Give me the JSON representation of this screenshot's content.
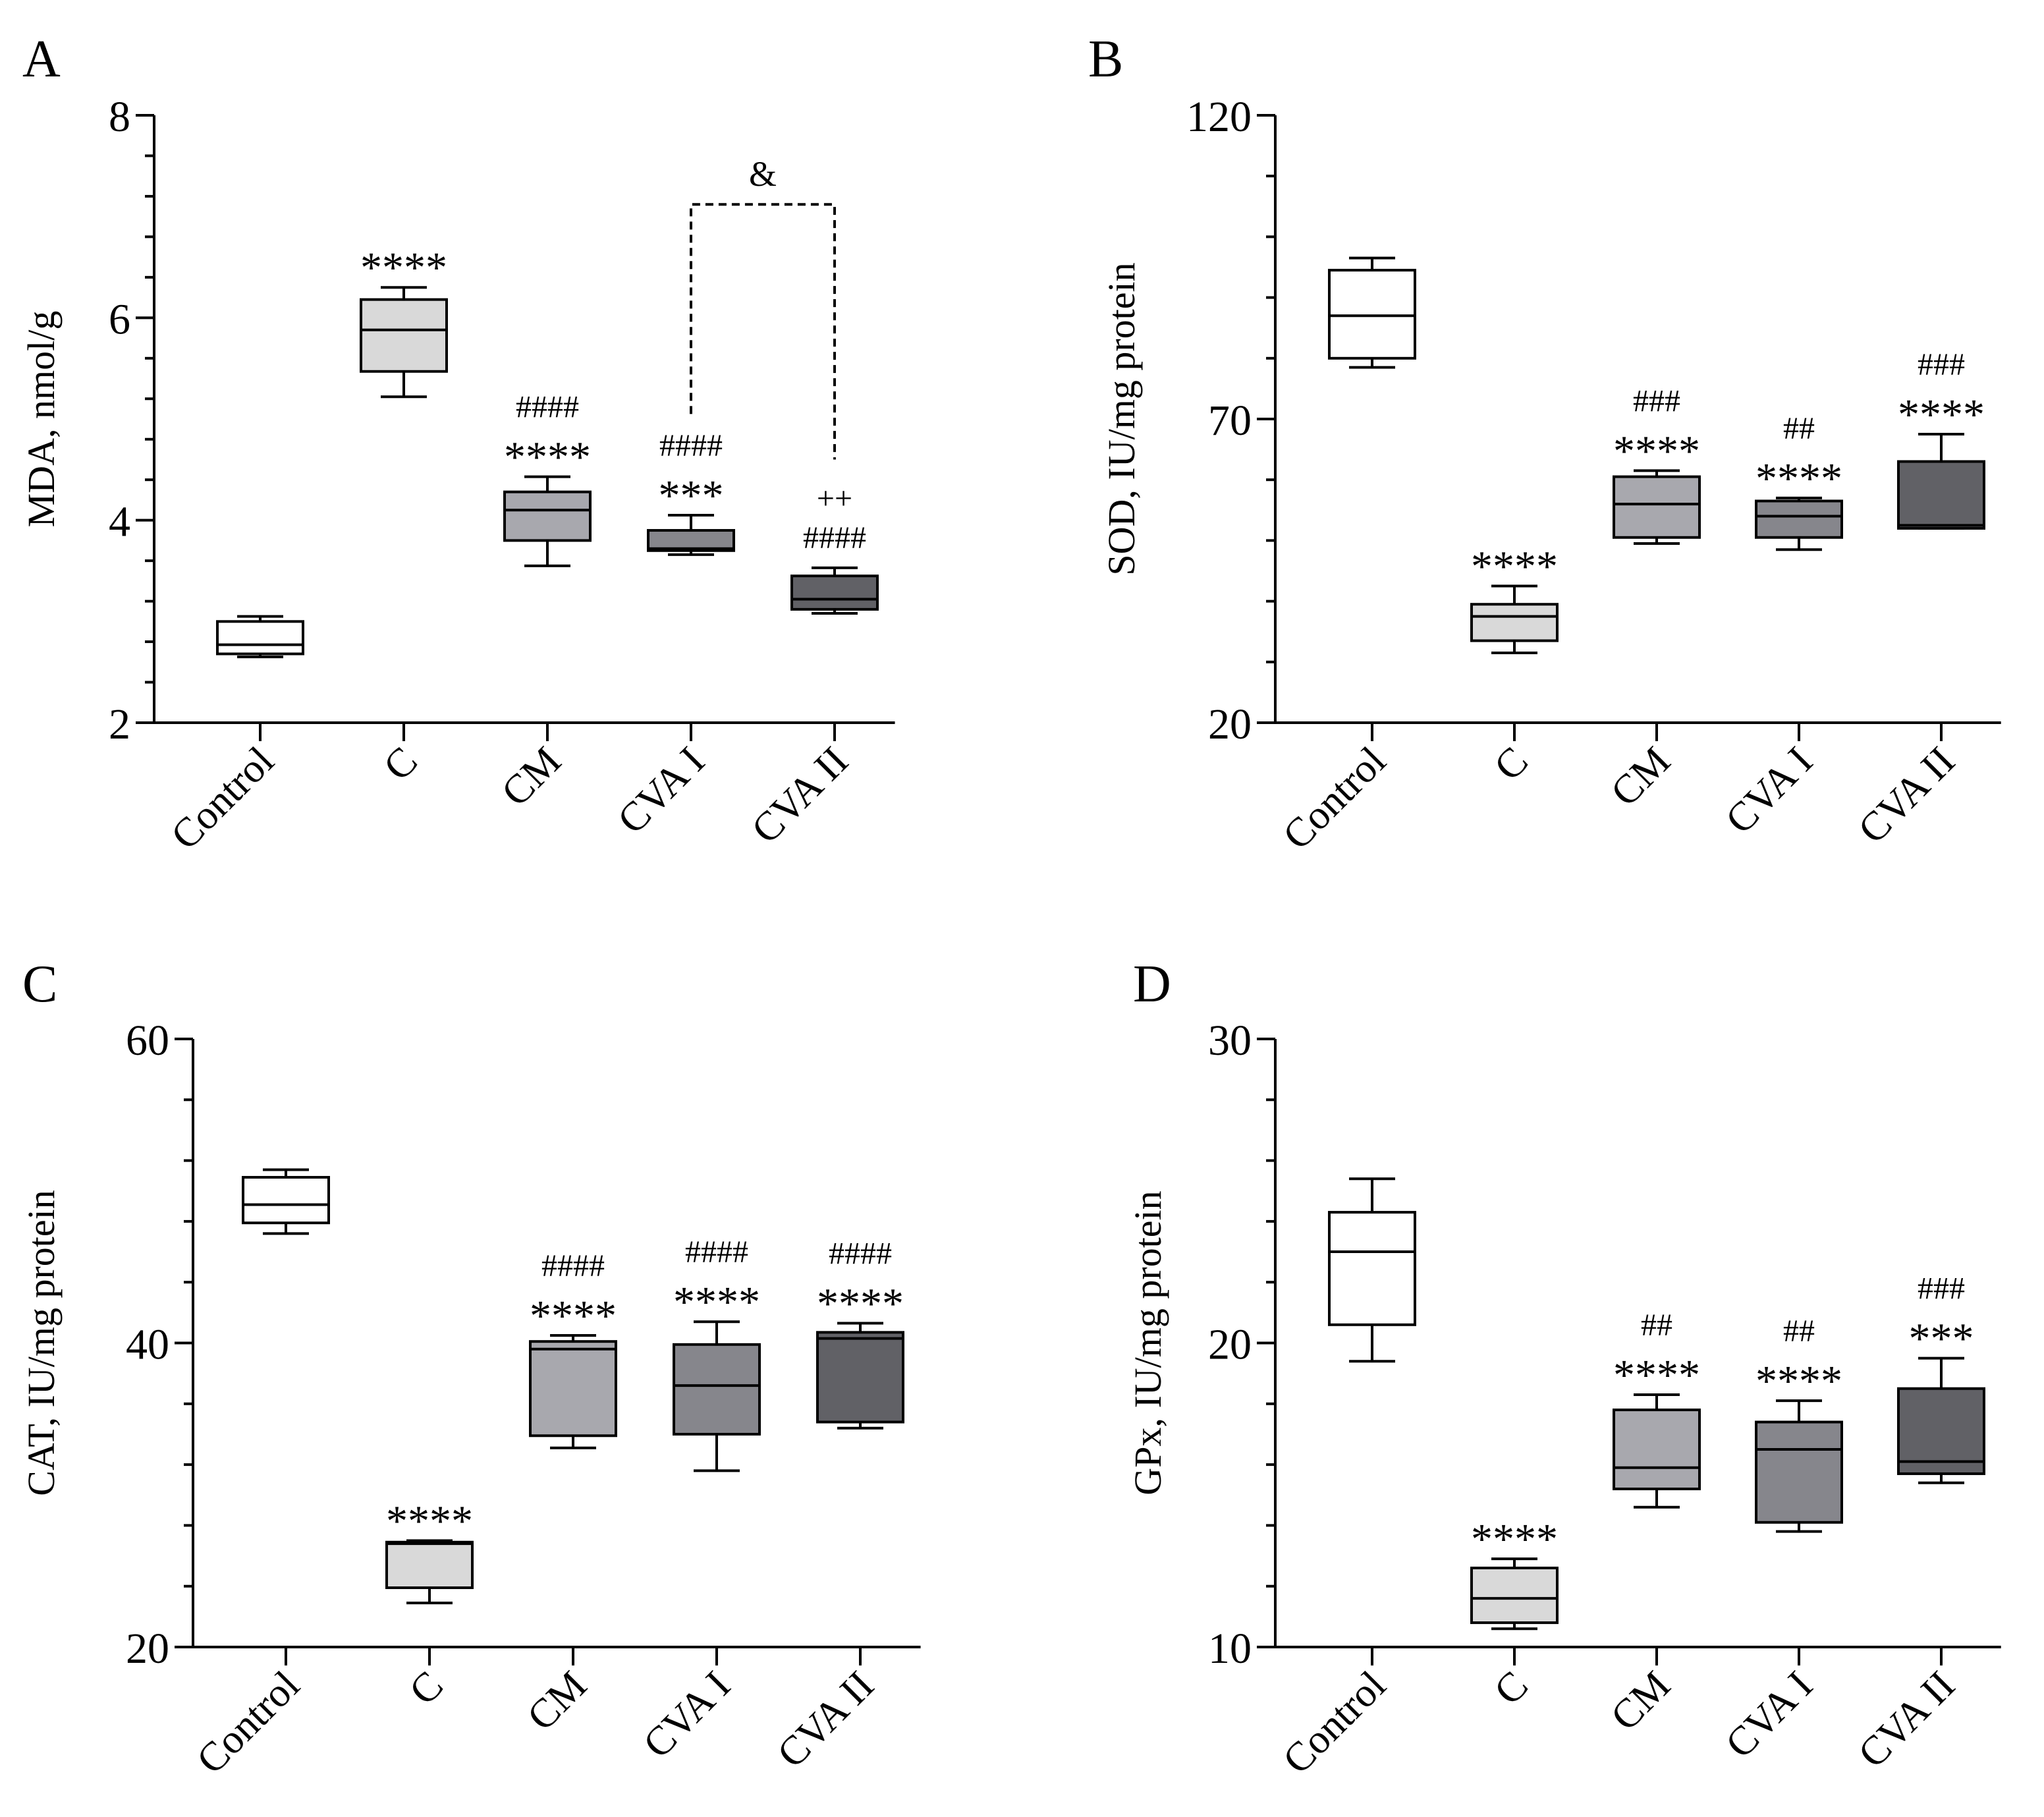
{
  "figure": {
    "group_colors": [
      "#ffffff",
      "#d9d9d9",
      "#a8a8ae",
      "#86868c",
      "#616166"
    ],
    "line_color": "#000000"
  },
  "chart_data": [
    {
      "panel": "A",
      "type": "box",
      "ylabel": "MDA, nmol/g",
      "ylim": [
        2,
        8
      ],
      "major_ticks": [
        2,
        4,
        6,
        8
      ],
      "minor_step": 0.4,
      "categories": [
        "Control",
        "C",
        "CM",
        "CVA I",
        "CVA II"
      ],
      "boxes": [
        {
          "min": 2.65,
          "q1": 2.68,
          "median": 2.77,
          "q3": 3.0,
          "max": 3.05
        },
        {
          "min": 5.22,
          "q1": 5.47,
          "median": 5.88,
          "q3": 6.18,
          "max": 6.3
        },
        {
          "min": 3.55,
          "q1": 3.8,
          "median": 4.1,
          "q3": 4.28,
          "max": 4.43
        },
        {
          "min": 3.66,
          "q1": 3.7,
          "median": 3.72,
          "q3": 3.9,
          "max": 4.05
        },
        {
          "min": 3.08,
          "q1": 3.12,
          "median": 3.22,
          "q3": 3.45,
          "max": 3.53
        }
      ],
      "annotations": [
        [],
        [
          "****"
        ],
        [
          "****",
          "####"
        ],
        [
          "***",
          "####"
        ],
        [
          "####",
          "++"
        ]
      ],
      "bracket": {
        "from": 3,
        "to": 4,
        "label": "&",
        "y_level": 7.12,
        "left_end": 5.05,
        "right_end": 4.6
      }
    },
    {
      "panel": "B",
      "type": "box",
      "ylabel": "SOD, IU/mg protein",
      "ylim": [
        20,
        120
      ],
      "major_ticks": [
        20,
        70,
        120
      ],
      "minor_step": 10,
      "categories": [
        "Control",
        "C",
        "CM",
        "CVA I",
        "CVA II"
      ],
      "boxes": [
        {
          "min": 78.5,
          "q1": 80,
          "median": 87,
          "q3": 94.5,
          "max": 96.5
        },
        {
          "min": 31.5,
          "q1": 33.5,
          "median": 37.5,
          "q3": 39.5,
          "max": 42.5
        },
        {
          "min": 49.5,
          "q1": 50.5,
          "median": 56,
          "q3": 60.5,
          "max": 61.5
        },
        {
          "min": 48.5,
          "q1": 50.5,
          "median": 54,
          "q3": 56.5,
          "max": 57
        },
        {
          "min": 52,
          "q1": 52,
          "median": 52.5,
          "q3": 63,
          "max": 67.5
        }
      ],
      "annotations": [
        [],
        [
          "****"
        ],
        [
          "****",
          "###"
        ],
        [
          "****",
          "##"
        ],
        [
          "****",
          "###"
        ]
      ]
    },
    {
      "panel": "C",
      "type": "box",
      "ylabel": "CAT, IU/mg protein",
      "ylim": [
        20,
        60
      ],
      "major_ticks": [
        20,
        40,
        60
      ],
      "minor_step": 4,
      "categories": [
        "Control",
        "C",
        "CM",
        "CVA I",
        "CVA II"
      ],
      "boxes": [
        {
          "min": 47.2,
          "q1": 47.9,
          "median": 49.1,
          "q3": 50.9,
          "max": 51.4
        },
        {
          "min": 22.9,
          "q1": 23.9,
          "median": 26.8,
          "q3": 26.9,
          "max": 27
        },
        {
          "min": 33.1,
          "q1": 33.9,
          "median": 39.6,
          "q3": 40.1,
          "max": 40.5
        },
        {
          "min": 31.6,
          "q1": 34,
          "median": 37.2,
          "q3": 39.9,
          "max": 41.4
        },
        {
          "min": 34.4,
          "q1": 34.8,
          "median": 40.3,
          "q3": 40.7,
          "max": 41.3
        }
      ],
      "annotations": [
        [],
        [
          "****"
        ],
        [
          "****",
          "####"
        ],
        [
          "****",
          "####"
        ],
        [
          "****",
          "####"
        ]
      ]
    },
    {
      "panel": "D",
      "type": "box",
      "ylabel": "GPx, IU/mg protein",
      "ylim": [
        10,
        30
      ],
      "major_ticks": [
        10,
        20,
        30
      ],
      "minor_step": 2,
      "categories": [
        "Control",
        "C",
        "CM",
        "CVA I",
        "CVA II"
      ],
      "boxes": [
        {
          "min": 19.4,
          "q1": 20.6,
          "median": 23,
          "q3": 24.3,
          "max": 25.4
        },
        {
          "min": 10.6,
          "q1": 10.8,
          "median": 11.6,
          "q3": 12.6,
          "max": 12.9
        },
        {
          "min": 14.6,
          "q1": 15.2,
          "median": 15.9,
          "q3": 17.8,
          "max": 18.3
        },
        {
          "min": 13.8,
          "q1": 14.1,
          "median": 16.5,
          "q3": 17.4,
          "max": 18.1
        },
        {
          "min": 15.4,
          "q1": 15.7,
          "median": 16.1,
          "q3": 18.5,
          "max": 19.5
        }
      ],
      "annotations": [
        [],
        [
          "****"
        ],
        [
          "****",
          "##"
        ],
        [
          "****",
          "##"
        ],
        [
          "***",
          "###"
        ]
      ]
    }
  ]
}
